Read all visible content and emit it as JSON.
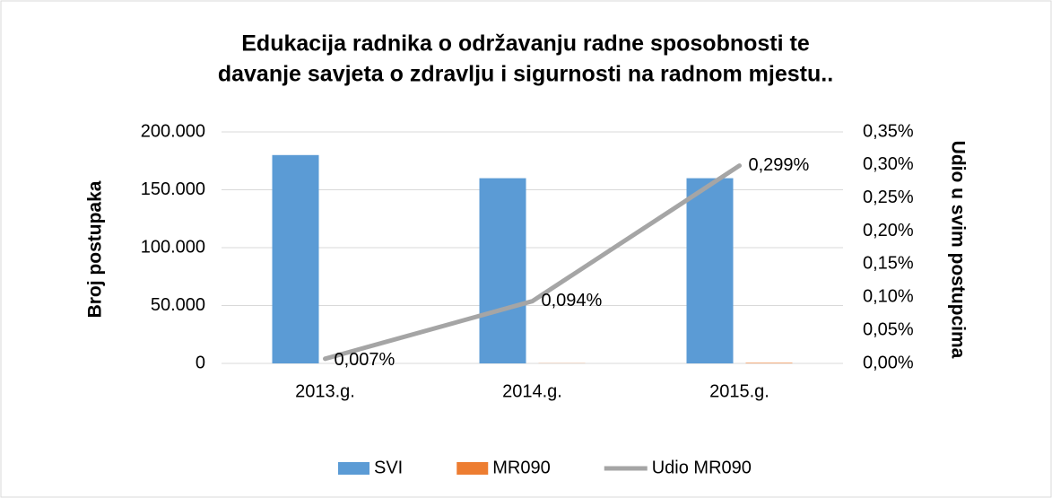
{
  "chart_data": {
    "type": "bar-line",
    "title": [
      "Edukacija radnika o održavanju radne sposobnosti te",
      "davanje savjeta o zdravlju i sigurnosti na radnom mjestu.."
    ],
    "y_label": "Broj postupaka",
    "y2_label": "Udio u svim postupcima",
    "categories": [
      "2013.g.",
      "2014.g.",
      "2015.g."
    ],
    "series": [
      {
        "name": "SVI",
        "type": "bar",
        "color": "#5b9bd5",
        "values": [
          180000,
          160000,
          160000
        ]
      },
      {
        "name": "MR090",
        "type": "bar",
        "color": "#ed7d31",
        "values": [
          13,
          150,
          478
        ]
      },
      {
        "name": "Udio MR090",
        "type": "line",
        "axis": "y2",
        "color": "#a5a5a5",
        "values": [
          0.007,
          0.094,
          0.299
        ],
        "value_labels": [
          "0,007%",
          "0,094%",
          "0,299%"
        ]
      }
    ],
    "ylim": [
      0,
      200000
    ],
    "yticks": [
      0,
      {
        "value": 50000,
        "label": "50.000"
      },
      {
        "value": 100000,
        "label": "100.000"
      },
      {
        "value": 150000,
        "label": "150.000"
      },
      {
        "value": 200000,
        "label": "200.000"
      }
    ],
    "y2lim": [
      0,
      0.35
    ],
    "y2ticks": [
      {
        "value": 0,
        "label": "0,00%"
      },
      {
        "value": 0.05,
        "label": "0,05%"
      },
      {
        "value": 0.1,
        "label": "0,10%"
      },
      {
        "value": 0.15,
        "label": "0,15%"
      },
      {
        "value": 0.2,
        "label": "0,20%"
      },
      {
        "value": 0.25,
        "label": "0,25%"
      },
      {
        "value": 0.3,
        "label": "0,30%"
      },
      {
        "value": 0.35,
        "label": "0,35%"
      }
    ],
    "grid": true,
    "legend": "bottom"
  }
}
